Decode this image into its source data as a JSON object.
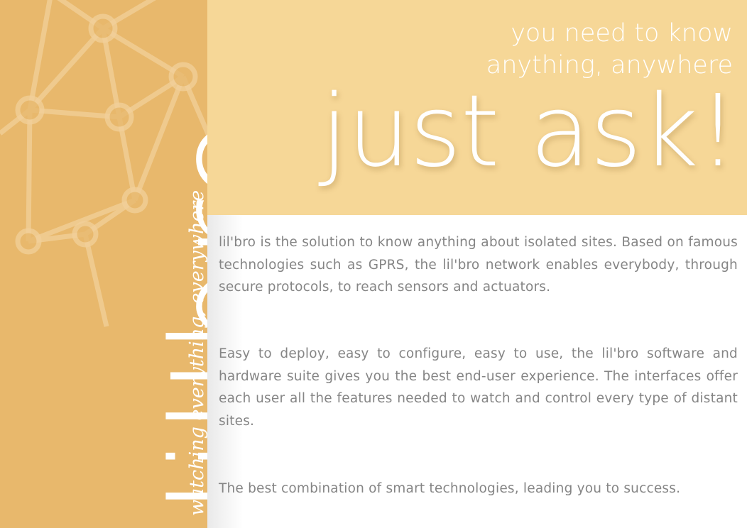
{
  "sidebar": {
    "brand": "lil'bro",
    "tagline": "watching everything, everywhere",
    "background_color": "#e8b86c",
    "decoration_icon": "network-nodes-icon"
  },
  "hero": {
    "line_1": "you need to know",
    "line_2": "anything, anywhere",
    "headline": "just ask!",
    "background_color": "#f6d797"
  },
  "content": {
    "paragraphs": [
      "lil'bro is the solution to know anything about isolated sites. Based on famous technologies such as GPRS, the lil'bro network enables everybody, through secure protocols, to reach sensors and actuators.",
      "Easy to deploy, easy to configure, easy to use, the lil'bro software and hardware suite gives you the best end-user experience. The interfaces offer each user all the features needed to watch and control every type of distant sites."
    ],
    "closing": "The best combination of smart technologies, leading you to success.",
    "text_color": "#858585"
  }
}
